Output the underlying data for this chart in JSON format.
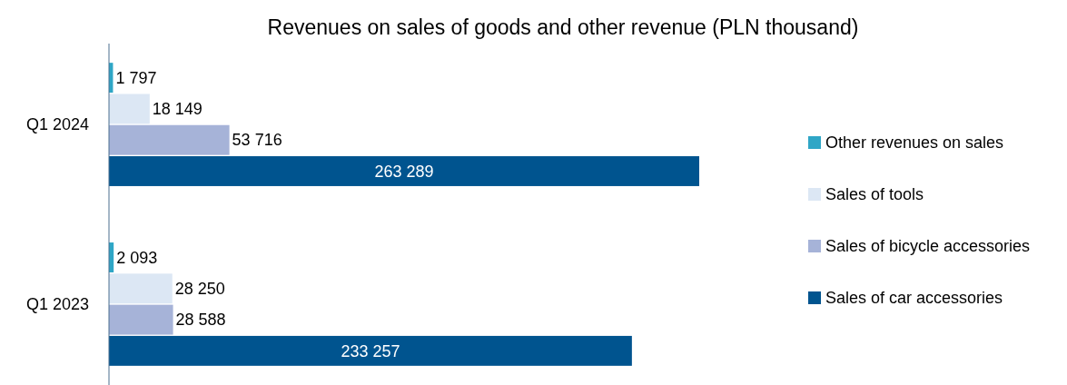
{
  "chart_data": {
    "type": "bar",
    "orientation": "horizontal",
    "title": "Revenues on sales of goods and other revenue (PLN thousand)",
    "categories": [
      "Q1 2024",
      "Q1 2023"
    ],
    "series": [
      {
        "name": "Other revenues on sales",
        "color": "#2fa6c6",
        "values": [
          1797,
          2093
        ],
        "value_labels": [
          "1 797",
          "2 093"
        ]
      },
      {
        "name": "Sales of tools",
        "color": "#dce7f4",
        "values": [
          18149,
          28250
        ],
        "value_labels": [
          "18 149",
          "28 250"
        ]
      },
      {
        "name": "Sales of bicycle accessories",
        "color": "#a6b3d8",
        "values": [
          53716,
          28588
        ],
        "value_labels": [
          "53 716",
          "28 588"
        ]
      },
      {
        "name": "Sales of car accessories",
        "color": "#00548f",
        "values": [
          263289,
          233257
        ],
        "value_labels": [
          "263 289",
          "233 257"
        ]
      }
    ],
    "legend": "right"
  }
}
